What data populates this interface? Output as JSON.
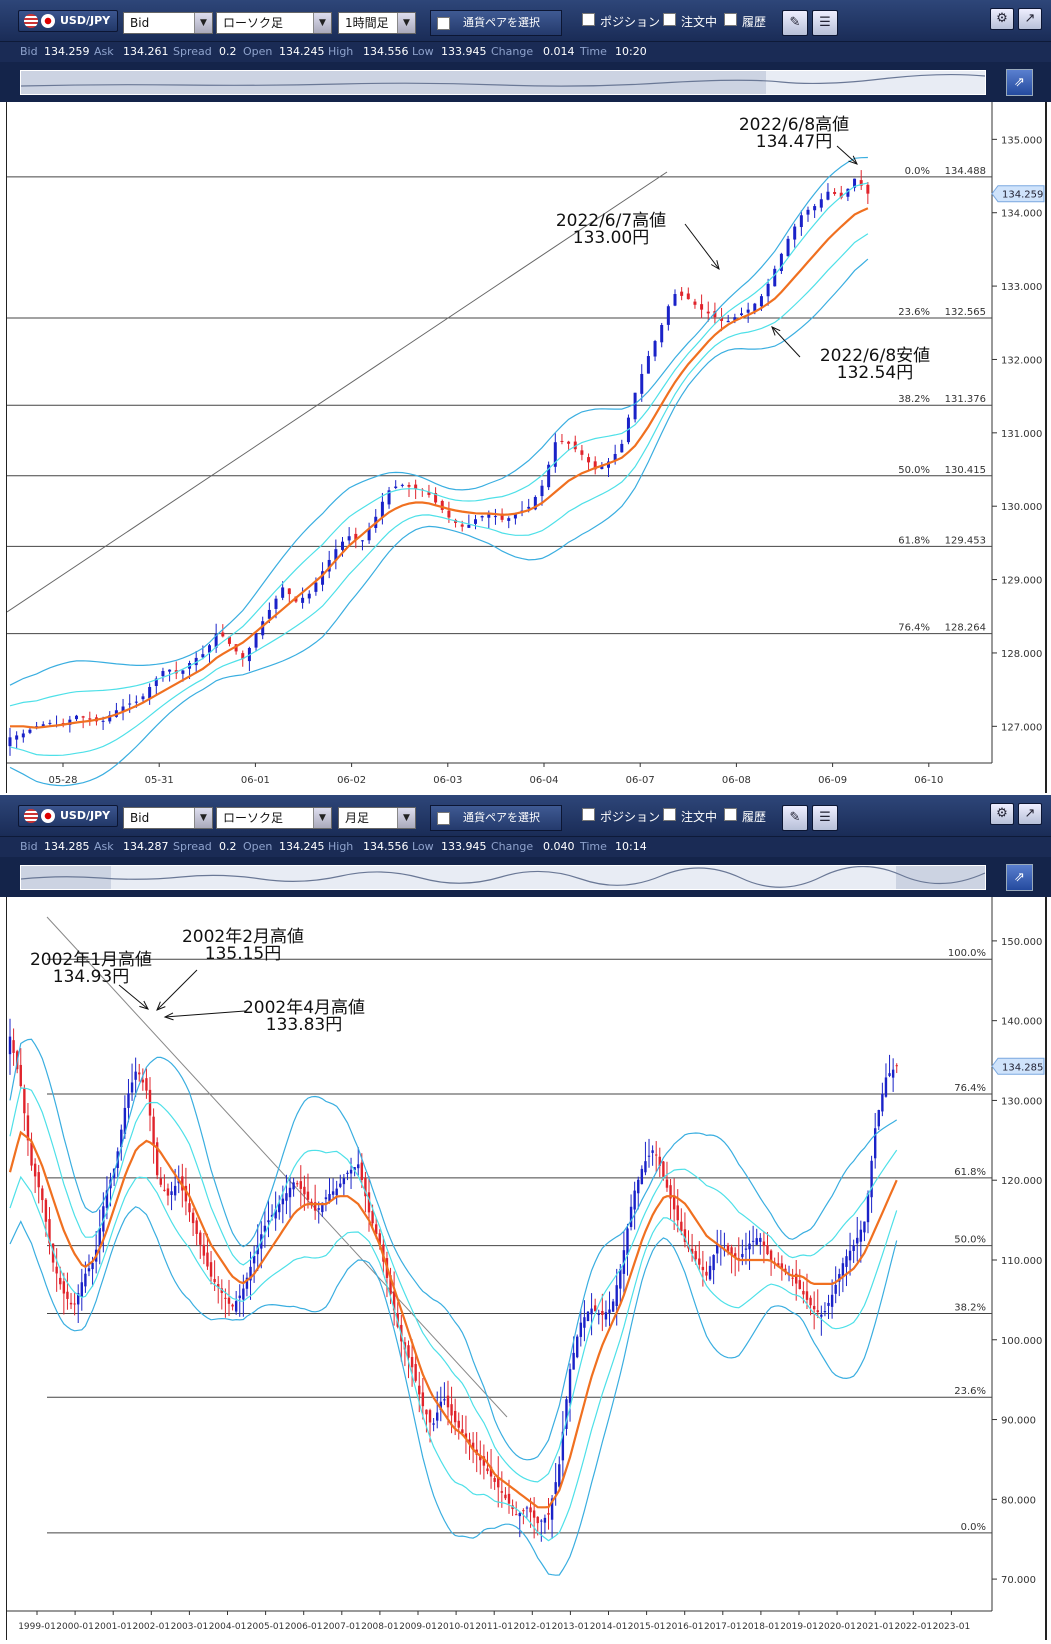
{
  "panels": [
    {
      "toolbar": {
        "pair": "USD/JPY",
        "price_type": "Bid",
        "chart_type": "ローソク足",
        "timeframe": "1時間足",
        "pair_select_label": "通貨ペアを選択",
        "checkboxes": [
          "ポジション",
          "注文中",
          "履歴"
        ]
      },
      "quote": [
        {
          "label": "Bid",
          "value": "134.259"
        },
        {
          "label": "Ask",
          "value": "134.261"
        },
        {
          "label": "Spread",
          "value": "0.2"
        },
        {
          "label": "Open",
          "value": "134.245"
        },
        {
          "label": "High",
          "value": "134.556"
        },
        {
          "label": "Low",
          "value": "133.945"
        },
        {
          "label": "Change",
          "value": "0.014"
        },
        {
          "label": "Time",
          "value": "10:20"
        }
      ]
    },
    {
      "toolbar": {
        "pair": "USD/JPY",
        "price_type": "Bid",
        "chart_type": "ローソク足",
        "timeframe": "月足",
        "pair_select_label": "通貨ペアを選択",
        "checkboxes": [
          "ポジション",
          "注文中",
          "履歴"
        ]
      },
      "quote": [
        {
          "label": "Bid",
          "value": "134.285"
        },
        {
          "label": "Ask",
          "value": "134.287"
        },
        {
          "label": "Spread",
          "value": "0.2"
        },
        {
          "label": "Open",
          "value": "134.245"
        },
        {
          "label": "High",
          "value": "134.556"
        },
        {
          "label": "Low",
          "value": "133.945"
        },
        {
          "label": "Change",
          "value": "0.040"
        },
        {
          "label": "Time",
          "value": "10:14"
        }
      ]
    }
  ],
  "chart_data": [
    {
      "type": "candlestick",
      "timeframe": "1時間足",
      "ylim": [
        126.5,
        135.4
      ],
      "y_ticks": [
        "135.000",
        "134.000",
        "133.000",
        "132.000",
        "131.000",
        "130.000",
        "129.000",
        "128.000",
        "127.000"
      ],
      "y_tick_values": [
        135,
        134,
        133,
        132,
        131,
        130,
        129,
        128,
        127
      ],
      "x_ticks": [
        "05-28",
        "05-31",
        "06-01",
        "06-02",
        "06-03",
        "06-04",
        "06-07",
        "06-08",
        "06-09",
        "06-10"
      ],
      "current_price": "134.259",
      "current_price_value": 134.259,
      "fibonacci": [
        {
          "pct": "0.0%",
          "value": "134.488",
          "y": 134.488
        },
        {
          "pct": "23.6%",
          "value": "132.565",
          "y": 132.565
        },
        {
          "pct": "38.2%",
          "value": "131.376",
          "y": 131.376
        },
        {
          "pct": "50.0%",
          "value": "130.415",
          "y": 130.415
        },
        {
          "pct": "61.8%",
          "value": "129.453",
          "y": 129.453
        },
        {
          "pct": "76.4%",
          "value": "128.264",
          "y": 128.264
        }
      ],
      "price_path": [
        126.85,
        126.9,
        127.0,
        127.05,
        127.0,
        127.15,
        127.1,
        127.05,
        127.2,
        127.3,
        127.35,
        127.6,
        127.8,
        127.7,
        127.9,
        128.0,
        128.3,
        128.1,
        127.9,
        128.3,
        128.6,
        128.9,
        128.7,
        128.8,
        129.1,
        129.4,
        129.6,
        129.5,
        129.8,
        130.2,
        130.3,
        130.25,
        130.2,
        130.0,
        129.8,
        129.7,
        129.85,
        129.9,
        129.8,
        129.9,
        130.0,
        130.3,
        130.9,
        130.85,
        130.7,
        130.5,
        130.6,
        130.8,
        131.5,
        132.0,
        132.4,
        132.9,
        132.85,
        132.7,
        132.6,
        132.5,
        132.6,
        132.7,
        132.9,
        133.3,
        133.7,
        134.0,
        134.1,
        134.3,
        134.2,
        134.47,
        134.26
      ],
      "ma_path": [
        127.0,
        127.0,
        126.98,
        127.0,
        127.02,
        127.05,
        127.07,
        127.1,
        127.15,
        127.22,
        127.3,
        127.4,
        127.5,
        127.6,
        127.7,
        127.8,
        127.95,
        128.05,
        128.15,
        128.3,
        128.45,
        128.6,
        128.75,
        128.9,
        129.05,
        129.25,
        129.45,
        129.6,
        129.75,
        129.9,
        130.0,
        130.05,
        130.05,
        130.0,
        129.95,
        129.92,
        129.9,
        129.9,
        129.88,
        129.9,
        129.95,
        130.05,
        130.2,
        130.35,
        130.45,
        130.52,
        130.58,
        130.65,
        130.8,
        131.05,
        131.35,
        131.65,
        131.9,
        132.1,
        132.3,
        132.45,
        132.55,
        132.62,
        132.72,
        132.85,
        133.05,
        133.25,
        133.45,
        133.65,
        133.82,
        133.98,
        134.06
      ],
      "annotations": [
        {
          "label": "2022/6/8高値",
          "value": "134.47円"
        },
        {
          "label": "2022/6/7高値",
          "value": "133.00円"
        },
        {
          "label": "2022/6/8安値",
          "value": "132.54円"
        }
      ]
    },
    {
      "type": "candlestick",
      "timeframe": "月足",
      "ylim": [
        66,
        155
      ],
      "y_ticks": [
        "150.000",
        "140.000",
        "130.000",
        "120.000",
        "110.000",
        "100.000",
        "90.000",
        "80.000",
        "70.000"
      ],
      "y_tick_values": [
        150,
        140,
        130,
        120,
        110,
        100,
        90,
        80,
        70
      ],
      "x_ticks": [
        "1999-01",
        "2000-01",
        "2001-01",
        "2002-01",
        "2003-01",
        "2004-01",
        "2005-01",
        "2006-01",
        "2007-01",
        "2008-01",
        "2009-01",
        "2010-01",
        "2011-01",
        "2012-01",
        "2013-01",
        "2014-01",
        "2015-01",
        "2016-01",
        "2017-01",
        "2018-01",
        "2019-01",
        "2020-01",
        "2021-01",
        "2022-01",
        "2023-01"
      ],
      "current_price": "134.285",
      "current_price_value": 134.285,
      "fibonacci": [
        {
          "pct": "100.0%",
          "y": 147.7
        },
        {
          "pct": "76.4%",
          "y": 130.8
        },
        {
          "pct": "61.8%",
          "y": 120.3
        },
        {
          "pct": "50.0%",
          "y": 111.8
        },
        {
          "pct": "38.2%",
          "y": 103.3
        },
        {
          "pct": "23.6%",
          "y": 92.8
        },
        {
          "pct": "0.0%",
          "y": 75.8
        }
      ],
      "price_path": [
        138,
        132,
        122,
        118,
        110,
        106,
        104,
        108,
        110,
        118,
        122,
        130,
        134,
        131,
        120,
        118,
        120,
        116,
        112,
        108,
        106,
        104,
        106,
        110,
        114,
        116,
        118,
        120,
        118,
        116,
        118,
        119,
        121,
        122,
        116,
        112,
        106,
        100,
        97,
        92,
        89,
        93,
        90,
        88,
        86,
        84,
        82,
        80,
        78,
        79,
        77,
        78,
        84,
        96,
        102,
        104,
        103,
        104,
        110,
        118,
        122,
        124,
        120,
        116,
        112,
        110,
        108,
        112,
        111,
        110,
        112,
        113,
        110,
        109,
        108,
        106,
        104,
        103,
        106,
        110,
        112,
        115,
        127,
        133,
        134.3
      ],
      "ma_path": [
        121,
        126,
        125,
        122,
        118,
        114,
        111,
        109,
        110,
        113,
        117,
        121,
        124,
        125,
        124,
        122,
        120,
        118,
        115,
        112,
        110,
        108,
        107,
        108,
        110,
        112,
        114,
        116,
        117,
        117,
        117,
        118,
        118,
        117,
        115,
        112,
        108,
        104,
        100,
        96,
        93,
        91,
        89,
        88,
        86,
        85,
        83,
        82,
        81,
        80,
        79,
        79,
        81,
        85,
        90,
        95,
        99,
        102,
        105,
        109,
        113,
        116,
        118,
        118,
        117,
        115,
        113,
        112,
        111,
        110,
        110,
        110,
        110,
        109,
        108,
        108,
        107,
        107,
        107,
        108,
        109,
        111,
        114,
        117,
        120
      ],
      "annotations": [
        {
          "label": "2002年2月高値",
          "value": "135.15円"
        },
        {
          "label": "2002年1月高値",
          "value": "134.93円"
        },
        {
          "label": "2002年4月高値",
          "value": "133.83円"
        }
      ]
    }
  ]
}
